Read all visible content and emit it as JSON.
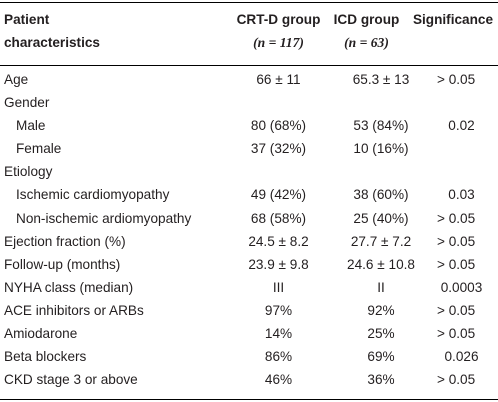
{
  "header": {
    "col1_line1": "Patient",
    "col1_line2": "characteristics",
    "col2_line1": "CRT-D group",
    "col2_line2": "(n = 117)",
    "col3_line1": "ICD group",
    "col3_line2": "(n = 63)",
    "col4_line1": "Significance"
  },
  "rows": [
    {
      "label": "Age",
      "indent": false,
      "crtd": "66 ± 11",
      "icd": "65.3 ± 13",
      "sig": "> 0.05"
    },
    {
      "label": "Gender",
      "indent": false,
      "crtd": "",
      "icd": "",
      "sig": ""
    },
    {
      "label": "Male",
      "indent": true,
      "crtd": "80 (68%)",
      "icd": "53 (84%)",
      "sig": "0.02"
    },
    {
      "label": "Female",
      "indent": true,
      "crtd": "37 (32%)",
      "icd": "10 (16%)",
      "sig": ""
    },
    {
      "label": "Etiology",
      "indent": false,
      "crtd": "",
      "icd": "",
      "sig": ""
    },
    {
      "label": "Ischemic cardiomyopathy",
      "indent": true,
      "crtd": "49 (42%)",
      "icd": "38 (60%)",
      "sig": "0.03"
    },
    {
      "label": "Non-ischemic ardiomyopathy",
      "indent": true,
      "crtd": "68 (58%)",
      "icd": "25 (40%)",
      "sig": "> 0.05"
    },
    {
      "label": "Ejection fraction (%)",
      "indent": false,
      "crtd": "24.5 ± 8.2",
      "icd": "27.7 ± 7.2",
      "sig": "> 0.05"
    },
    {
      "label": "Follow-up (months)",
      "indent": false,
      "crtd": "23.9 ± 9.8",
      "icd": "24.6 ± 10.8",
      "sig": "> 0.05"
    },
    {
      "label": "NYHA class (median)",
      "indent": false,
      "crtd": "III",
      "icd": "II",
      "sig": "0.0003"
    },
    {
      "label": "ACE inhibitors or ARBs",
      "indent": false,
      "crtd": "97%",
      "icd": "92%",
      "sig": "> 0.05"
    },
    {
      "label": "Amiodarone",
      "indent": false,
      "crtd": "14%",
      "icd": "25%",
      "sig": "> 0.05"
    },
    {
      "label": "Beta blockers",
      "indent": false,
      "crtd": "86%",
      "icd": "69%",
      "sig": "0.026"
    },
    {
      "label": "CKD stage 3 or above",
      "indent": false,
      "crtd": "46%",
      "icd": "36%",
      "sig": "> 0.05"
    }
  ]
}
